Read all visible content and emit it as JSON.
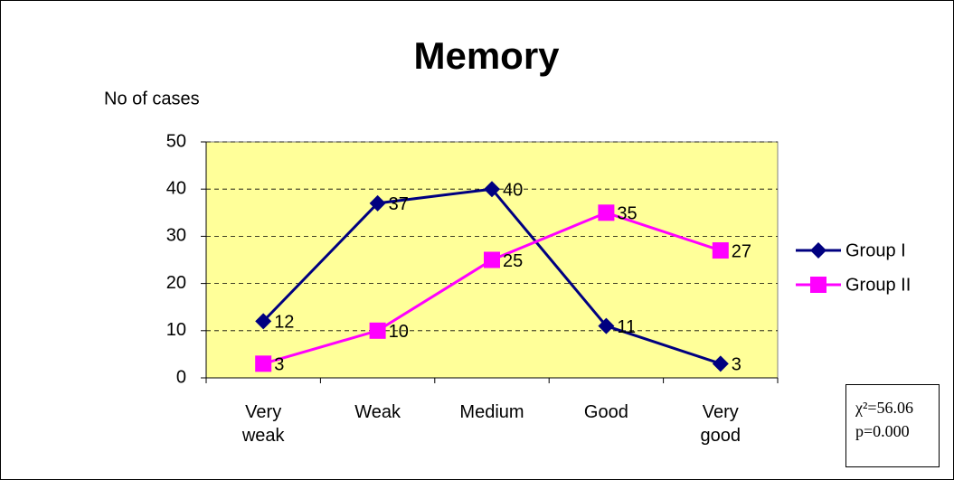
{
  "chart_data": {
    "type": "line",
    "title": "Memory",
    "y_label": "No of cases",
    "categories": [
      "Very weak",
      "Weak",
      "Medium",
      "Good",
      "Very good"
    ],
    "series": [
      {
        "name": "Group I",
        "color": "#000080",
        "marker": "diamond",
        "values": [
          12,
          37,
          40,
          11,
          3
        ]
      },
      {
        "name": "Group II",
        "color": "#ff00ff",
        "marker": "square",
        "values": [
          3,
          10,
          25,
          35,
          27
        ]
      }
    ],
    "ylim": [
      0,
      50
    ],
    "yticks": [
      0,
      10,
      20,
      30,
      40,
      50
    ],
    "grid": true,
    "legend": "right",
    "plot_background": "#ffff99",
    "annotation": [
      "χ²=56.06",
      "p=0.000"
    ]
  }
}
